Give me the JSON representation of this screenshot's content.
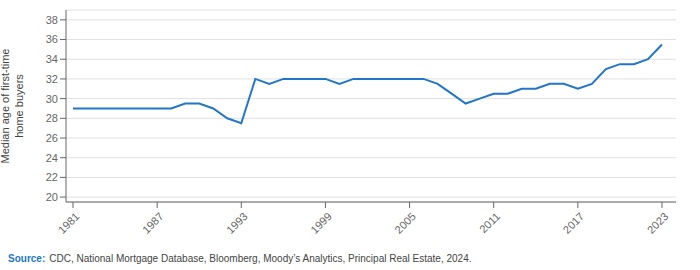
{
  "chart_data": {
    "type": "line",
    "x": [
      1981,
      1982,
      1983,
      1984,
      1985,
      1986,
      1987,
      1988,
      1989,
      1990,
      1991,
      1992,
      1993,
      1994,
      1995,
      1996,
      1997,
      1998,
      1999,
      2000,
      2001,
      2002,
      2003,
      2004,
      2005,
      2006,
      2007,
      2008,
      2009,
      2010,
      2011,
      2012,
      2013,
      2014,
      2015,
      2016,
      2017,
      2018,
      2019,
      2020,
      2021,
      2022,
      2023
    ],
    "values": [
      29.0,
      29.0,
      29.0,
      29.0,
      29.0,
      29.0,
      29.0,
      29.0,
      29.5,
      29.5,
      29.0,
      28.0,
      27.5,
      32.0,
      31.5,
      32.0,
      32.0,
      32.0,
      32.0,
      31.5,
      32.0,
      32.0,
      32.0,
      32.0,
      32.0,
      32.0,
      31.5,
      30.5,
      29.5,
      30.0,
      30.5,
      30.5,
      31.0,
      31.0,
      31.5,
      31.5,
      31.0,
      31.5,
      33.0,
      33.5,
      33.5,
      34.0,
      35.5
    ],
    "color": "#2176c7",
    "xlim": [
      1980.5,
      2024
    ],
    "xticks": [
      1981,
      1987,
      1993,
      1999,
      2005,
      2011,
      2017,
      2023
    ],
    "ylim": [
      19.5,
      39
    ],
    "yticks": [
      20,
      22,
      24,
      26,
      28,
      30,
      32,
      34,
      36,
      38
    ],
    "ylabel": "Median age of first-time\nhome buyers",
    "grid": true,
    "annotations": [
      {
        "text": "Source:",
        "color": "#2176c7"
      },
      {
        "text": "CDC, National Mortgage Database, Bloomberg, Moody’s Analytics, Principal Real Estate, 2024.",
        "color": "#444444"
      }
    ]
  }
}
